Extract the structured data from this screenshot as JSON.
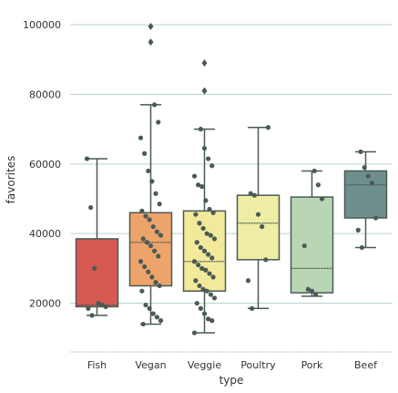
{
  "chart_data": {
    "type": "box",
    "title": "",
    "xlabel": "type",
    "ylabel": "favorites",
    "ylim": [
      6000,
      105000
    ],
    "yticks": [
      20000,
      40000,
      60000,
      80000,
      100000
    ],
    "ytick_labels": [
      "20000",
      "40000",
      "60000",
      "80000",
      "100000"
    ],
    "grid": "horizontal",
    "colors": {
      "grid": "#b7d3cf",
      "box_edge": "#4a5a56",
      "point": "#4a5a56",
      "baseline": "#aaaaaa"
    },
    "categories": [
      "Fish",
      "Vegan",
      "Veggie",
      "Poultry",
      "Pork",
      "Beef"
    ],
    "boxes": [
      {
        "category": "Fish",
        "color": "#d65a52",
        "whisker_low": 16500,
        "q1": 19000,
        "median": 19500,
        "q3": 38500,
        "whisker_high": 61500,
        "outliers": [],
        "points": [
          61500,
          47500,
          30000,
          20000,
          19500,
          19000,
          18500,
          16500
        ]
      },
      {
        "category": "Vegan",
        "color": "#eda46b",
        "whisker_low": 14000,
        "q1": 25000,
        "median": 37500,
        "q3": 46000,
        "whisker_high": 77000,
        "outliers": [
          95000,
          99500
        ],
        "points": [
          77000,
          72000,
          67500,
          63000,
          58000,
          55000,
          51500,
          48500,
          46500,
          45000,
          44000,
          42000,
          40500,
          39500,
          38500,
          37500,
          36500,
          35000,
          33500,
          32000,
          30500,
          29000,
          27500,
          26000,
          25000,
          23500,
          19500,
          18500,
          17000,
          16000,
          15000,
          14000
        ]
      },
      {
        "category": "Veggie",
        "color": "#f3e99a",
        "whisker_low": 11500,
        "q1": 23500,
        "median": 32000,
        "q3": 46500,
        "whisker_high": 70000,
        "outliers": [
          81000,
          89000
        ],
        "points": [
          70000,
          64500,
          61500,
          59500,
          56500,
          54000,
          53500,
          49500,
          47000,
          46000,
          45500,
          43000,
          41500,
          40000,
          39500,
          38500,
          37500,
          36000,
          35000,
          34000,
          33000,
          32000,
          31000,
          30000,
          29500,
          28500,
          27500,
          26500,
          25000,
          24000,
          23500,
          22500,
          21500,
          20000,
          18500,
          17000,
          15500,
          15000,
          11500
        ]
      },
      {
        "category": "Poultry",
        "color": "#eeeda3",
        "whisker_low": 18500,
        "q1": 32500,
        "median": 43000,
        "q3": 51000,
        "whisker_high": 70500,
        "outliers": [],
        "points": [
          70500,
          51500,
          51000,
          45500,
          42000,
          32500,
          26500,
          18500
        ]
      },
      {
        "category": "Pork",
        "color": "#b9d6b4",
        "whisker_low": 22000,
        "q1": 23000,
        "median": 30000,
        "q3": 50500,
        "whisker_high": 58000,
        "outliers": [],
        "points": [
          58000,
          54000,
          50000,
          36500,
          24000,
          23500,
          22500
        ]
      },
      {
        "category": "Beef",
        "color": "#6f8f8d",
        "whisker_low": 36000,
        "q1": 44500,
        "median": 54000,
        "q3": 58000,
        "whisker_high": 63500,
        "outliers": [],
        "points": [
          63500,
          59000,
          56500,
          54500,
          44500,
          41000,
          36000
        ]
      }
    ]
  }
}
